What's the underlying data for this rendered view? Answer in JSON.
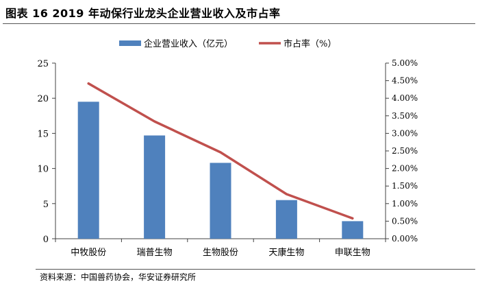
{
  "figure": {
    "title": "图表 16 2019 年动保行业龙头企业营业收入及市占率",
    "source": "资料来源：中国兽药协会，华安证券研究所"
  },
  "chart_data": {
    "type": "bar",
    "categories": [
      "中牧股份",
      "瑞普生物",
      "生物股份",
      "天康生物",
      "申联生物"
    ],
    "series": [
      {
        "name": "企业营业收入（亿元）",
        "type": "bar",
        "axis": "left",
        "values": [
          19.5,
          14.7,
          10.8,
          5.5,
          2.5
        ],
        "color": "#4f81bd"
      },
      {
        "name": "市占率（%）",
        "type": "line",
        "axis": "right",
        "values": [
          4.42,
          3.34,
          2.46,
          1.27,
          0.58
        ],
        "color": "#c0504d"
      }
    ],
    "y_left": {
      "range": [
        0,
        25
      ],
      "ticks": [
        "0",
        "5",
        "10",
        "15",
        "20",
        "25"
      ]
    },
    "y_right": {
      "range": [
        0,
        5
      ],
      "ticks": [
        "0.00%",
        "0.50%",
        "1.00%",
        "1.50%",
        "2.00%",
        "2.50%",
        "3.00%",
        "3.50%",
        "4.00%",
        "4.50%",
        "5.00%"
      ]
    },
    "legend_position": "top-center",
    "grid": false
  }
}
